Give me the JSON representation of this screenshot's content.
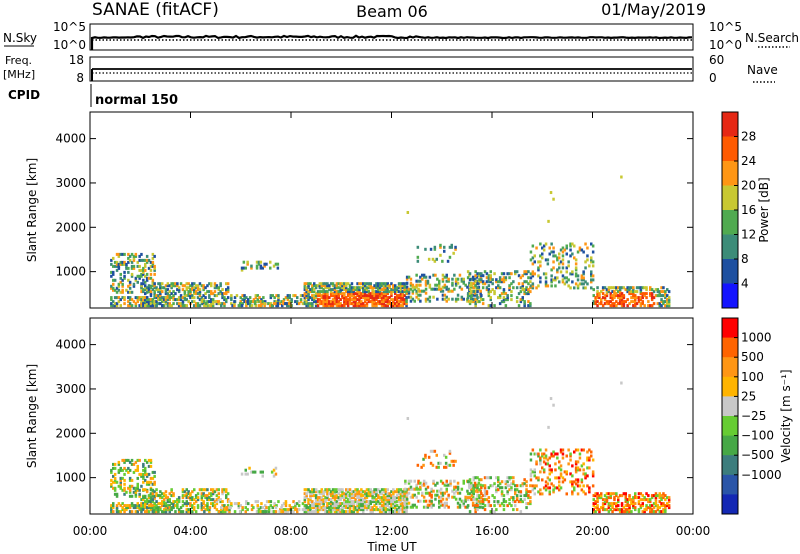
{
  "header": {
    "station": "SANAE (fitACF)",
    "beam": "Beam 06",
    "date": "01/May/2019"
  },
  "nsky_panel": {
    "left_label": "N.Sky",
    "left_ticks": [
      "10^5",
      "10^0"
    ],
    "right_ticks": [
      "10^5",
      "10^0"
    ],
    "right_label": "N.Search"
  },
  "freq_panel": {
    "left_label_top": "Freq.",
    "left_label_bottom": "[MHz]",
    "left_ticks": [
      "18",
      "8"
    ],
    "right_ticks": [
      "60",
      "0"
    ],
    "right_label": "Nave"
  },
  "cpid_panel": {
    "label": "CPID",
    "mode": "normal 150"
  },
  "time_axis": {
    "label": "Time UT",
    "ticks": [
      "00:00",
      "04:00",
      "08:00",
      "12:00",
      "16:00",
      "20:00",
      "00:00"
    ],
    "range_hours": [
      0,
      24
    ]
  },
  "chart_data": [
    {
      "type": "heatmap",
      "title": "",
      "xlabel": "",
      "ylabel": "Slant Range [km]",
      "ylim": [
        180,
        4600
      ],
      "yticks": [
        "4000",
        "3000",
        "2000",
        "1000"
      ],
      "colorbar_label": "Power [dB]",
      "colorbar_ticks": [
        "28",
        "24",
        "20",
        "16",
        "12",
        "8",
        "4"
      ],
      "colors": [
        "#1414ff",
        "#1e50a0",
        "#3c8c78",
        "#50aa50",
        "#c8c832",
        "#ff9614",
        "#ff5a00",
        "#e62814"
      ]
    },
    {
      "type": "heatmap",
      "title": "",
      "xlabel": "Time UT",
      "ylabel": "Slant Range [km]",
      "ylim": [
        180,
        4600
      ],
      "yticks": [
        "4000",
        "3000",
        "2000",
        "1000"
      ],
      "colorbar_label": "Velocity [m s⁻¹]",
      "colorbar_ticks": [
        "1000",
        "500",
        "100",
        "25",
        "−25",
        "−100",
        "−500",
        "−1000"
      ],
      "colors": [
        "#1428b4",
        "#2a55a8",
        "#3c7d7d",
        "#46a846",
        "#66cc33",
        "#c8c8c8",
        "#ffb400",
        "#ff9614",
        "#ff6400",
        "#ff0000"
      ]
    }
  ]
}
